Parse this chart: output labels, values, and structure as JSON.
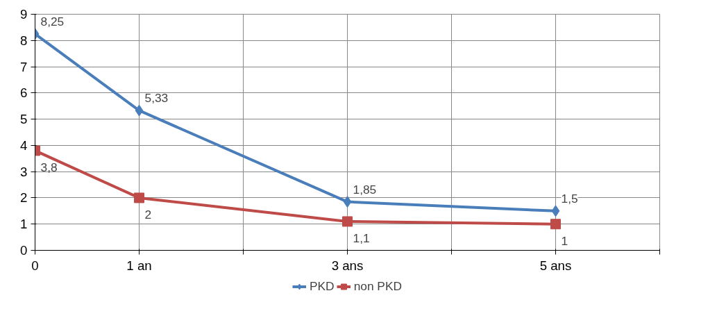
{
  "chart_data": {
    "type": "line",
    "x": [
      0,
      1,
      3,
      5
    ],
    "xlim": [
      0,
      6
    ],
    "xticks": [
      {
        "value": 0,
        "label": "0"
      },
      {
        "value": 1,
        "label": "1 an"
      },
      {
        "value": 2,
        "label": null
      },
      {
        "value": 3,
        "label": "3 ans"
      },
      {
        "value": 4,
        "label": null
      },
      {
        "value": 5,
        "label": "5 ans"
      },
      {
        "value": 6,
        "label": null
      }
    ],
    "ylim": [
      0,
      9
    ],
    "yticks": [
      0,
      1,
      2,
      3,
      4,
      5,
      6,
      7,
      8,
      9
    ],
    "series": [
      {
        "name": "PKD",
        "color": "#4a7ebb",
        "marker": "diamond",
        "values": [
          8.25,
          5.33,
          1.85,
          1.5
        ],
        "value_labels": [
          "8,25",
          "5,33",
          "1,85",
          "1,5"
        ]
      },
      {
        "name": "non PKD",
        "color": "#be4b48",
        "marker": "square",
        "values": [
          3.8,
          2,
          1.1,
          1
        ],
        "value_labels": [
          "3,8",
          "2",
          "1,1",
          "1"
        ]
      }
    ],
    "grid": true,
    "legend": "bottom"
  }
}
